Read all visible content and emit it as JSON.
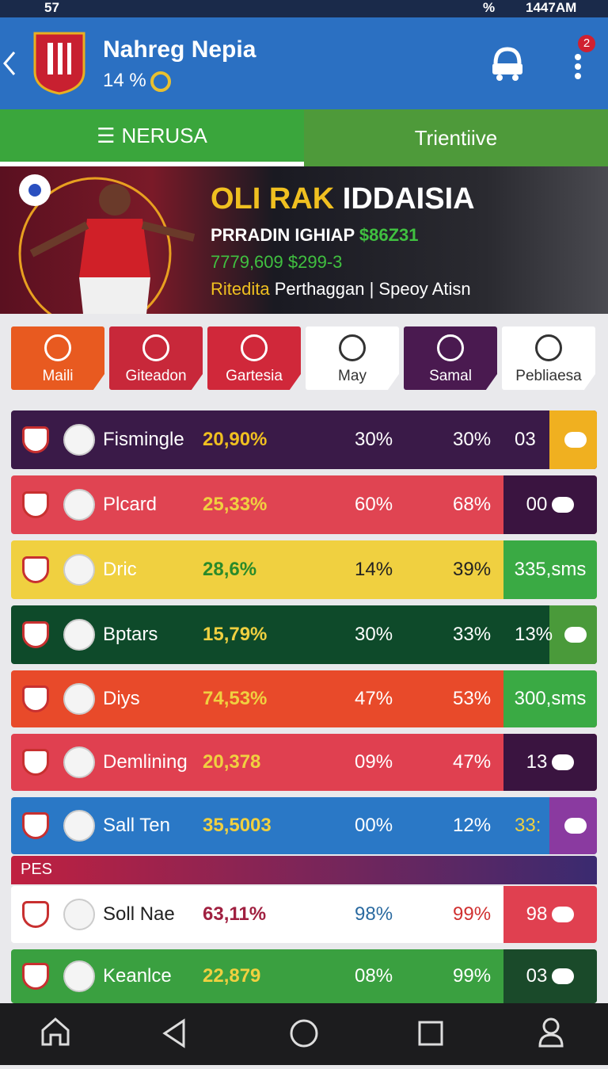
{
  "status_bar": {
    "left": "57",
    "battery": "%",
    "time": "1447AM"
  },
  "header": {
    "title": "Nahreg Nepia",
    "subtitle": "14 %",
    "badge": "2"
  },
  "tabs": [
    "NERUSA",
    "Trientiive"
  ],
  "banner": {
    "title_1": "OLI RAK",
    "title_2": "IDDAISIA",
    "line_1": "PRRADIN IGHIAP",
    "line_1_amount": "$86Z31",
    "line_2": "7779,609 $299-3",
    "line_3_highlight": "Ritedita",
    "line_3": "Perthaggan | Speoy Atisn"
  },
  "categories": [
    "Maili",
    "Giteadon",
    "Gartesia",
    "May",
    "Samal",
    "Pebliaesa"
  ],
  "table": {
    "rows": [
      {
        "name": "Fismingle",
        "col1": "20,90%",
        "col2": "30%",
        "col3": "30%",
        "tag": "03"
      },
      {
        "name": "Plcard",
        "col1": "25,33%",
        "col2": "60%",
        "col3": "68%",
        "tag": "00"
      },
      {
        "name": "Dric",
        "col1": "28,6%",
        "col2": "14%",
        "col3": "39%",
        "tag": "335,sms"
      },
      {
        "name": "Bptars",
        "col1": "15,79%",
        "col2": "30%",
        "col3": "33%",
        "tag": "13%"
      },
      {
        "name": "Diys",
        "col1": "74,53%",
        "col2": "47%",
        "col3": "53%",
        "tag": "300,sms"
      },
      {
        "name": "Demlining",
        "col1": "20,378",
        "col2": "09%",
        "col3": "47%",
        "tag": "13"
      },
      {
        "name": "Sall Ten",
        "col1": "35,5003",
        "col2": "00%",
        "col3": "12%",
        "tag": "33:"
      }
    ],
    "section": {
      "label": "PES",
      "rows": [
        {
          "name": "Soll Nae",
          "col1": "63,11%",
          "col2": "98%",
          "col3": "99%",
          "tag": "98"
        },
        {
          "name": "Keanlce",
          "col1": "22,879",
          "col2": "08%",
          "col3": "99%",
          "tag": "03"
        }
      ]
    }
  }
}
